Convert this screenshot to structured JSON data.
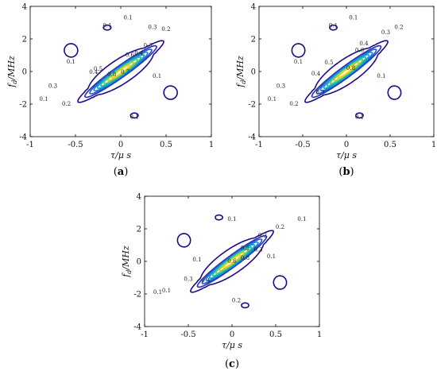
{
  "chart_data": [
    {
      "type": "contour",
      "panel_label": "(a)",
      "panel_letter": "a",
      "xlabel": "τ/μ s",
      "ylabel": "f_d/MHz",
      "ylabel_main": "f",
      "ylabel_sub": "d",
      "ylabel_rest": "/MHz",
      "xlim": [
        -1,
        1
      ],
      "ylim": [
        -4,
        4
      ],
      "xticks": [
        "-1",
        "-0.5",
        "0",
        "0.5",
        "1"
      ],
      "yticks": [
        "-4",
        "-2",
        "0",
        "2",
        "4"
      ],
      "levels": [
        0.1,
        0.2,
        0.3,
        0.4,
        0.5,
        0.6,
        0.7,
        0.8,
        0.9
      ],
      "colormap": [
        "#1f0a8a",
        "#2530b5",
        "#1f58d4",
        "#1583d8",
        "#10a6c9",
        "#22bfa5",
        "#64cc6d",
        "#b3cf3a",
        "#f1d52a"
      ],
      "contour_labels": [
        "0.1",
        "0.1",
        "0.1",
        "0.2",
        "0.3",
        "0.3",
        "0.4",
        "0.5",
        "0.6",
        "0.7",
        "0.8",
        "0.4",
        "0.3",
        "0.1",
        "0.1",
        "0.2",
        "0.1"
      ]
    },
    {
      "type": "contour",
      "panel_label": "(b)",
      "panel_letter": "b",
      "xlabel": "τ/μ s",
      "ylabel": "f_d/MHz",
      "ylabel_main": "f",
      "ylabel_sub": "d",
      "ylabel_rest": "/MHz",
      "xlim": [
        -1,
        1
      ],
      "ylim": [
        -4,
        4
      ],
      "xticks": [
        "-1",
        "-0.5",
        "0",
        "0.5",
        "1"
      ],
      "yticks": [
        "-4",
        "-2",
        "0",
        "2",
        "4"
      ],
      "levels": [
        0.1,
        0.2,
        0.3,
        0.4,
        0.5,
        0.6,
        0.7,
        0.8,
        0.9
      ],
      "colormap": [
        "#1f0a8a",
        "#2530b5",
        "#1f58d4",
        "#1583d8",
        "#10a6c9",
        "#22bfa5",
        "#64cc6d",
        "#b3cf3a",
        "#f1d52a"
      ],
      "contour_labels": [
        "0.1",
        "0.1",
        "0.1",
        "0.2",
        "0.3",
        "0.3",
        "0.4",
        "0.5",
        "0.6",
        "0.8",
        "0.4",
        "0.3",
        "0.1",
        "0.1",
        "0.2",
        "0.1"
      ]
    },
    {
      "type": "contour",
      "panel_label": "(c)",
      "panel_letter": "c",
      "xlabel": "τ/μ s",
      "ylabel": "f_d/MHz",
      "ylabel_main": "f",
      "ylabel_sub": "d",
      "ylabel_rest": "/MHz",
      "xlim": [
        -1,
        1
      ],
      "ylim": [
        -4,
        4
      ],
      "xticks": [
        "-1",
        "-0.5",
        "0",
        "0.5",
        "1"
      ],
      "yticks": [
        "-4",
        "-2",
        "0",
        "2",
        "4"
      ],
      "levels": [
        0.1,
        0.2,
        0.3,
        0.4,
        0.5,
        0.6,
        0.7,
        0.8,
        0.9
      ],
      "colormap": [
        "#1f0a8a",
        "#2530b5",
        "#1f58d4",
        "#1583d8",
        "#10a6c9",
        "#22bfa5",
        "#64cc6d",
        "#b3cf3a",
        "#f1d52a"
      ],
      "contour_labels": [
        "0.1",
        "0.2",
        "0.1",
        "0.1",
        "0.3",
        "0.2",
        "0.4",
        "0.6",
        "0.8",
        "0.5",
        "0.3",
        "0.1",
        "0.1",
        "0.2",
        "0.1"
      ]
    }
  ]
}
